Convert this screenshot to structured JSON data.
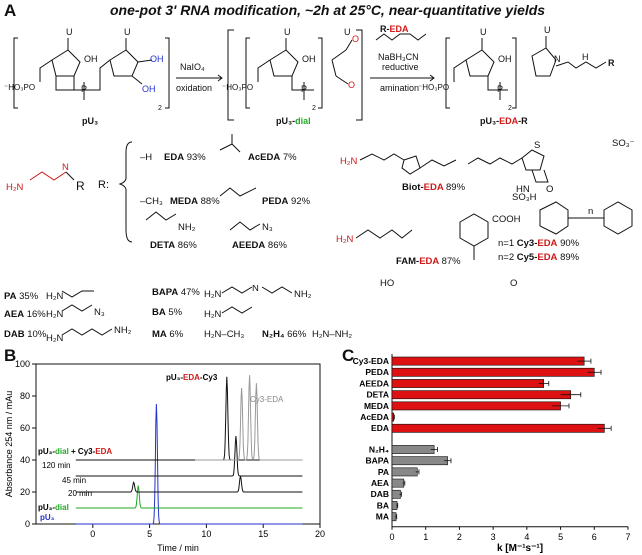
{
  "panel_a": {
    "letter": "A",
    "header": "one-pot 3' RNA modification, ~2h at 25°C, near-quantitative yields",
    "scheme": {
      "reagent1": "NaIO₄",
      "reagent1b": "oxidation",
      "reagent2": "NaBH₃CN",
      "reagent2b": "reductive",
      "reagent2c": "amination",
      "reagent_top": "R-EDA",
      "compound1": "pU₃",
      "compound2": "pU₃-dial",
      "compound3": "pU₃-EDA-R",
      "repeat_sub": "2",
      "base_label": "U",
      "oh": "OH",
      "r_label": "R"
    },
    "r_prefix": "R:",
    "r_groups": [
      {
        "name": "EDA",
        "yield": "93%"
      },
      {
        "name": "MEDA",
        "yield": "88%"
      },
      {
        "name": "DETA",
        "yield": "86%"
      },
      {
        "name": "AcEDA",
        "yield": "7%"
      },
      {
        "name": "PEDA",
        "yield": "92%"
      },
      {
        "name": "AEEDA",
        "yield": "86%"
      }
    ],
    "conjugates": [
      {
        "name": "Biot-EDA",
        "yield": "89%"
      },
      {
        "name": "FAM-EDA",
        "yield": "87%"
      },
      {
        "name": "Cy3-EDA",
        "yield": "90%",
        "n": "n=1"
      },
      {
        "name": "Cy5-EDA",
        "yield": "89%",
        "n": "n=2"
      }
    ],
    "amines": [
      {
        "name": "PA",
        "yield": "35%"
      },
      {
        "name": "AEA",
        "yield": "16%"
      },
      {
        "name": "DAB",
        "yield": "10%"
      },
      {
        "name": "BAPA",
        "yield": "47%"
      },
      {
        "name": "BA",
        "yield": "5%"
      },
      {
        "name": "MA",
        "yield": "6%"
      },
      {
        "name": "N₂H₄",
        "yield": "66%"
      }
    ],
    "atom_labels": {
      "h2n": "H₂N",
      "nh2": "NH₂",
      "n": "N",
      "h": "H",
      "o": "O",
      "p": "P",
      "cooh": "COOH",
      "ho": "HO",
      "so3": "SO₃⁻",
      "so3h": "SO₃H",
      "hn": "HN",
      "s": "S",
      "n3": "N₃",
      "ho3po": "⁻HO₃PO",
      "ma_formula": "H₂N–CH₃",
      "hydrazine": "H₂N–NH₂",
      "n_sub": "n",
      "h_sub": "–H",
      "ch3_sub": "–CH₃"
    }
  },
  "panel_b": {
    "letter": "B",
    "chart_data": {
      "type": "line",
      "xlabel": "Time / min",
      "ylabel": "Absorbance 254 nm / mAu",
      "xlim": [
        -5,
        20
      ],
      "ylim": [
        0,
        100
      ],
      "xticks": [
        0,
        5,
        10,
        15,
        20
      ],
      "yticks": [
        0,
        20,
        40,
        60,
        80,
        100
      ],
      "series": [
        {
          "name": "pU₃",
          "color": "#2233cc",
          "baseline": 0,
          "peaks": [
            [
              5.6,
              75
            ]
          ]
        },
        {
          "name": "pU₃-dial",
          "color": "#22aa22",
          "baseline": 10,
          "peaks": [
            [
              4.0,
              14
            ]
          ]
        },
        {
          "name": "20 min",
          "color": "#111111",
          "baseline": 20,
          "peaks": [
            [
              3.6,
              6
            ],
            [
              13.0,
              10
            ]
          ]
        },
        {
          "name": "45 min",
          "color": "#111111",
          "baseline": 30,
          "peaks": [
            [
              12.6,
              25
            ]
          ]
        },
        {
          "name": "120 min",
          "color": "#111111",
          "baseline": 40,
          "peaks": [
            [
              11.8,
              52
            ]
          ]
        },
        {
          "name": "Cy3-EDA",
          "color": "#999999",
          "baseline": 40,
          "peaks": [
            [
              13.1,
              45
            ],
            [
              13.8,
              53
            ],
            [
              14.4,
              48
            ]
          ]
        }
      ],
      "annotations": {
        "mix": "pU₃-dial + Cy3-EDA",
        "product": "pU₃-EDA-Cy3",
        "reagent": "Cy3-EDA",
        "t120": "120 min",
        "t45": "45 min",
        "t20": "20 min",
        "dial": "pU₃-dial",
        "pu3": "pU₃"
      }
    }
  },
  "panel_c": {
    "letter": "C",
    "chart_data": {
      "type": "bar",
      "orientation": "horizontal",
      "xlabel": "k [M⁻¹s⁻¹]",
      "xlim": [
        0,
        7
      ],
      "xticks": [
        0,
        1,
        2,
        3,
        4,
        5,
        6,
        7
      ],
      "categories": [
        "Cy3-EDA",
        "PEDA",
        "AEEDA",
        "DETA",
        "MEDA",
        "AcEDA",
        "EDA",
        "N₂H₄",
        "BAPA",
        "PA",
        "AEA",
        "DAB",
        "BA",
        "MA"
      ],
      "values": [
        5.7,
        6.0,
        4.5,
        5.3,
        5.0,
        0.05,
        6.3,
        1.25,
        1.65,
        0.75,
        0.35,
        0.25,
        0.15,
        0.12
      ],
      "errors": [
        0.2,
        0.2,
        0.15,
        0.3,
        0.25,
        0.02,
        0.2,
        0.1,
        0.1,
        0.05,
        0.03,
        0.03,
        0.02,
        0.02
      ],
      "colors": {
        "group1": "#dd1111",
        "group2": "#888888"
      }
    }
  }
}
